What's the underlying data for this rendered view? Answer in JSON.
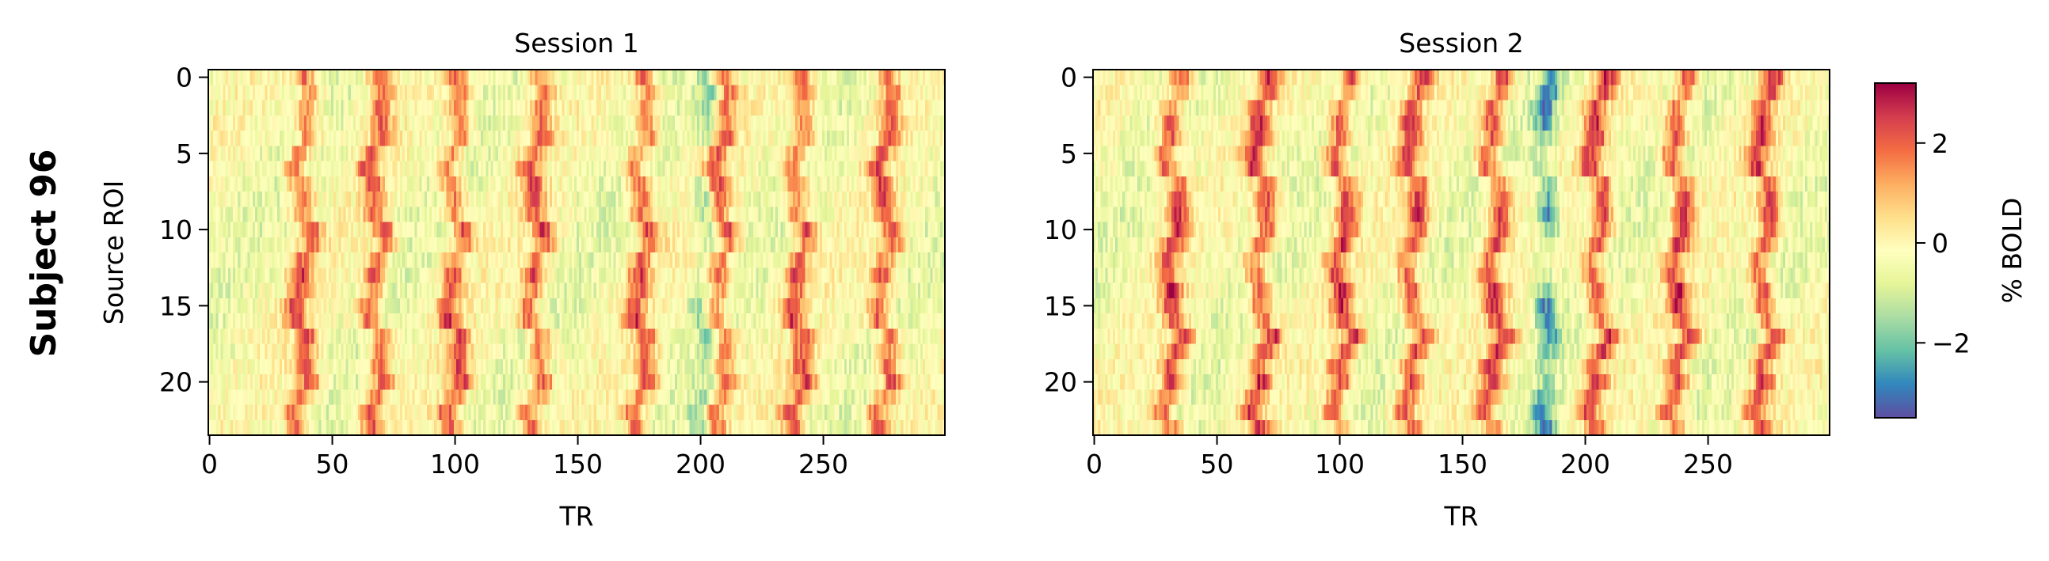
{
  "row_label": "Subject 96",
  "colormap": {
    "name": "Spectral_r",
    "stops": [
      "#5e4fa2",
      "#3288bd",
      "#66c2a5",
      "#abdda4",
      "#e6f598",
      "#ffffbf",
      "#fee08b",
      "#fdae61",
      "#f46d43",
      "#d53e4f",
      "#9e0142"
    ],
    "vmin": -3.5,
    "vmax": 3.2
  },
  "colorbar": {
    "label": "% BOLD",
    "ticks": [
      -2,
      0,
      2
    ],
    "tick_labels": [
      "−2",
      "0",
      "2"
    ]
  },
  "chart_data": [
    {
      "type": "heatmap",
      "title": "Session 1",
      "xlabel": "TR",
      "ylabel": "Source ROI",
      "n_cols": 300,
      "n_rows": 24,
      "xlim": [
        -0.5,
        299.5
      ],
      "ylim": [
        23.5,
        -0.5
      ],
      "x_ticks": [
        0,
        50,
        100,
        150,
        200,
        250
      ],
      "x_tick_labels": [
        "0",
        "50",
        "100",
        "150",
        "200",
        "250"
      ],
      "y_ticks": [
        0,
        5,
        10,
        15,
        20
      ],
      "y_tick_labels": [
        "0",
        "5",
        "10",
        "15",
        "20"
      ],
      "peak_TRs": [
        38,
        68,
        100,
        133,
        176,
        208,
        240,
        275
      ],
      "peak_amplitude": 2.4,
      "trough_TRs": [
        202
      ],
      "trough_amplitude": -1.8,
      "seed": 9601
    },
    {
      "type": "heatmap",
      "title": "Session 2",
      "xlabel": "TR",
      "ylabel": "",
      "n_cols": 300,
      "n_rows": 24,
      "xlim": [
        -0.5,
        299.5
      ],
      "ylim": [
        23.5,
        -0.5
      ],
      "x_ticks": [
        0,
        50,
        100,
        150,
        200,
        250
      ],
      "x_tick_labels": [
        "0",
        "50",
        "100",
        "150",
        "200",
        "250"
      ],
      "y_ticks": [
        0,
        5,
        10,
        15,
        20
      ],
      "y_tick_labels": [
        "0",
        "5",
        "10",
        "15",
        "20"
      ],
      "peak_TRs": [
        32,
        68,
        101,
        130,
        163,
        205,
        238,
        273
      ],
      "peak_amplitude": 2.5,
      "trough_TRs": [
        184
      ],
      "trough_amplitude": -2.7,
      "seed": 9602
    }
  ]
}
